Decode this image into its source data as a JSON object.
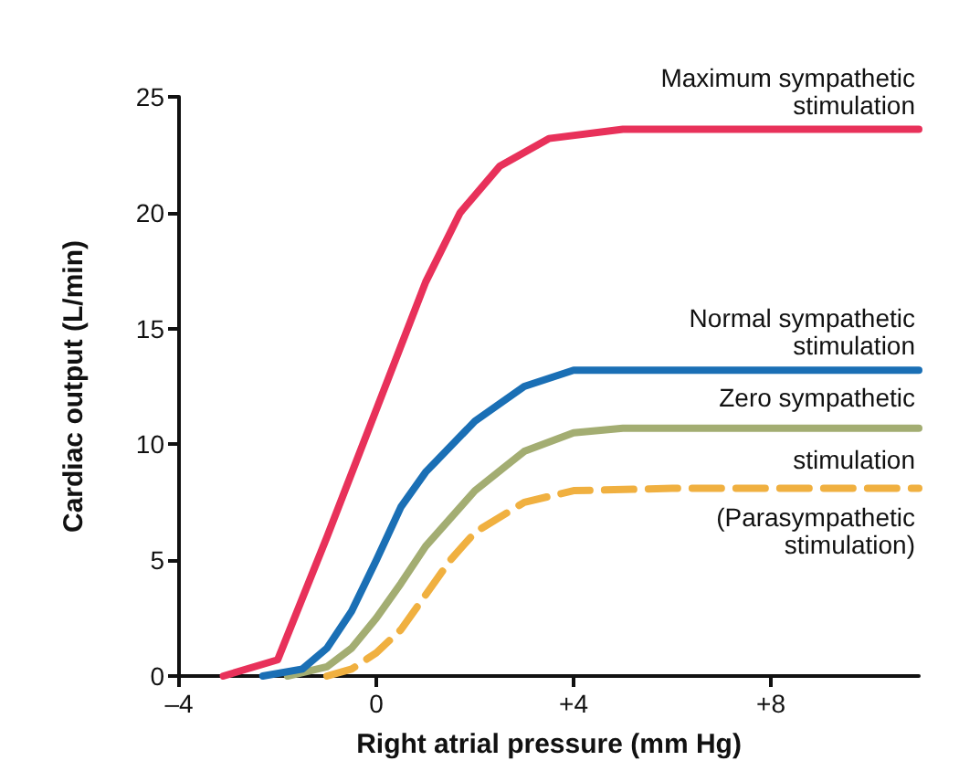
{
  "chart_data": {
    "type": "line",
    "xlabel": "Right atrial pressure (mm Hg)",
    "ylabel": "Cardiac output (L/min)",
    "xlim": [
      -4,
      11
    ],
    "ylim": [
      0,
      25
    ],
    "xticks": [
      {
        "value": -4,
        "label": "–4"
      },
      0,
      {
        "value": 4,
        "label": "+4"
      },
      {
        "value": 8,
        "label": "+8"
      }
    ],
    "yticks": [
      0,
      5,
      10,
      15,
      20,
      25
    ],
    "grid": false,
    "marker": "none",
    "series": [
      {
        "color": "#e8315a",
        "x": [
          -3.1,
          -2,
          -1,
          0,
          1,
          1.7,
          2.5,
          3.5,
          5,
          11
        ],
        "values": [
          0,
          0.7,
          6,
          11.5,
          17,
          20,
          22,
          23.2,
          23.6,
          23.6
        ]
      },
      {
        "color": "#1a6fb5",
        "x": [
          -2.3,
          -1.5,
          -1,
          -0.5,
          0,
          0.5,
          1,
          2,
          3,
          4,
          11
        ],
        "values": [
          0,
          0.3,
          1.2,
          2.8,
          5,
          7.3,
          8.8,
          11,
          12.5,
          13.2,
          13.2
        ]
      },
      {
        "color": "#a3ad72",
        "x": [
          -1.8,
          -1,
          -0.5,
          0,
          0.5,
          1,
          2,
          3,
          4,
          5,
          11
        ],
        "values": [
          0,
          0.4,
          1.2,
          2.5,
          4,
          5.6,
          8,
          9.7,
          10.5,
          10.7,
          10.7
        ]
      },
      {
        "color": "#f0b040",
        "line_style": "dashed",
        "x": [
          -1,
          -0.5,
          0,
          0.5,
          1,
          1.5,
          2,
          3,
          4,
          6,
          11
        ],
        "values": [
          0,
          0.3,
          1,
          2,
          3.5,
          5,
          6.2,
          7.5,
          8,
          8.1,
          8.1
        ]
      }
    ],
    "annotations": [
      "Maximum sympathetic\nstimulation",
      "Normal sympathetic\nstimulation",
      "Zero sympathetic\nstimulation",
      "(Parasympathetic\nstimulation)"
    ]
  }
}
